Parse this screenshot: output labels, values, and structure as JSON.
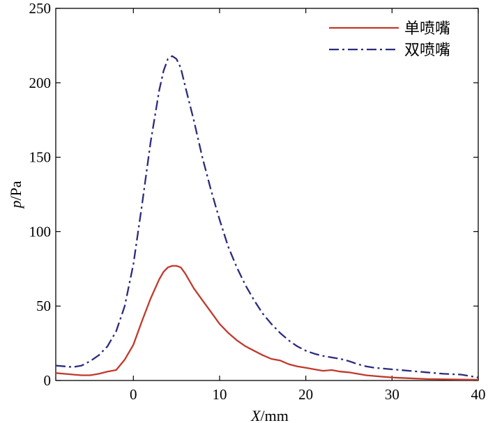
{
  "chart_data": {
    "type": "line",
    "xlabel": {
      "var": "X",
      "unit": "/mm"
    },
    "ylabel": {
      "var": "p",
      "unit": "/Pa"
    },
    "xlim": [
      -9,
      40
    ],
    "ylim": [
      0,
      250
    ],
    "xticks": [
      0,
      10,
      20,
      30,
      40
    ],
    "yticks": [
      0,
      50,
      100,
      150,
      200,
      250
    ],
    "grid": false,
    "legend_position": "top-right",
    "series": [
      {
        "name": "单喷嘴",
        "color": "#c0392b",
        "style": "solid",
        "points": [
          [
            -9,
            5
          ],
          [
            -8,
            4.5
          ],
          [
            -7,
            4
          ],
          [
            -6,
            3.5
          ],
          [
            -5,
            3.5
          ],
          [
            -4,
            4.5
          ],
          [
            -3,
            6
          ],
          [
            -2,
            7
          ],
          [
            -1,
            14
          ],
          [
            0,
            24
          ],
          [
            1,
            40
          ],
          [
            2,
            55
          ],
          [
            3,
            68
          ],
          [
            3.5,
            73
          ],
          [
            4,
            76
          ],
          [
            4.5,
            77
          ],
          [
            5,
            77
          ],
          [
            5.5,
            76
          ],
          [
            6,
            72
          ],
          [
            7,
            62
          ],
          [
            8,
            54
          ],
          [
            9,
            46
          ],
          [
            10,
            38
          ],
          [
            11,
            32
          ],
          [
            12,
            27
          ],
          [
            13,
            23
          ],
          [
            14,
            20
          ],
          [
            15,
            17
          ],
          [
            16,
            14.5
          ],
          [
            17,
            13.5
          ],
          [
            18,
            11
          ],
          [
            19,
            9.5
          ],
          [
            20,
            8.5
          ],
          [
            21,
            7.5
          ],
          [
            22,
            6.5
          ],
          [
            23,
            7
          ],
          [
            24,
            6
          ],
          [
            25,
            5.5
          ],
          [
            26,
            4.5
          ],
          [
            27,
            3.5
          ],
          [
            28,
            3
          ],
          [
            29,
            2.5
          ],
          [
            30,
            2
          ],
          [
            32,
            1.5
          ],
          [
            34,
            1
          ],
          [
            36,
            0.8
          ],
          [
            38,
            0.6
          ],
          [
            40,
            0.5
          ]
        ]
      },
      {
        "name": "双喷嘴",
        "color": "#2b2b7e",
        "style": "dashdot",
        "points": [
          [
            -9,
            10
          ],
          [
            -8,
            9.5
          ],
          [
            -7,
            9
          ],
          [
            -6,
            10
          ],
          [
            -5,
            13
          ],
          [
            -4,
            17
          ],
          [
            -3,
            23
          ],
          [
            -2,
            33
          ],
          [
            -1,
            50
          ],
          [
            0,
            78
          ],
          [
            1,
            118
          ],
          [
            2,
            160
          ],
          [
            3,
            195
          ],
          [
            3.5,
            208
          ],
          [
            4,
            216
          ],
          [
            4.5,
            218
          ],
          [
            5,
            216
          ],
          [
            5.5,
            210
          ],
          [
            6,
            198
          ],
          [
            7,
            175
          ],
          [
            8,
            150
          ],
          [
            9,
            128
          ],
          [
            10,
            108
          ],
          [
            11,
            90
          ],
          [
            12,
            76
          ],
          [
            13,
            64
          ],
          [
            14,
            54
          ],
          [
            15,
            45
          ],
          [
            16,
            38
          ],
          [
            17,
            32
          ],
          [
            18,
            27
          ],
          [
            19,
            23
          ],
          [
            20,
            20
          ],
          [
            21,
            18
          ],
          [
            22,
            16.5
          ],
          [
            23,
            15.5
          ],
          [
            24,
            14.5
          ],
          [
            25,
            13
          ],
          [
            26,
            11
          ],
          [
            27,
            9.5
          ],
          [
            28,
            8.5
          ],
          [
            29,
            8
          ],
          [
            30,
            7.5
          ],
          [
            32,
            6.5
          ],
          [
            34,
            5.5
          ],
          [
            36,
            4.5
          ],
          [
            38,
            4
          ],
          [
            39,
            3
          ],
          [
            40,
            2
          ]
        ]
      }
    ]
  }
}
